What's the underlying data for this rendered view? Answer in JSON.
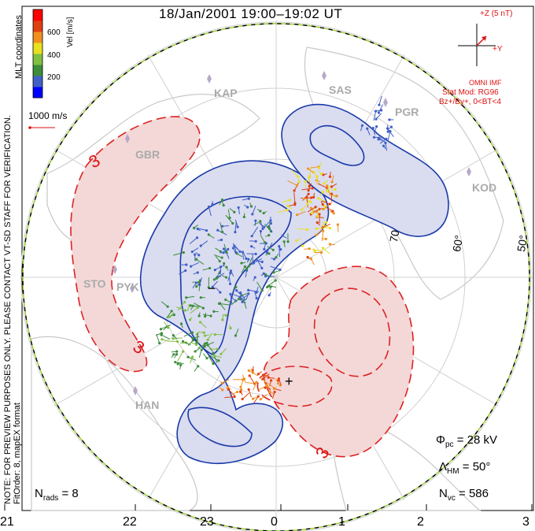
{
  "title": "18/Jan/2001 19:00–19:02 UT",
  "left_notes": {
    "coords": "MLT coordinates",
    "preview": "NOTE: FOR PREVIEW PURPOSES ONLY. PLEASE CONTACT VT-SD STAFF FOR VERIFICATION.",
    "fit": "FitOrder: 8, mapEX format"
  },
  "colorbar": {
    "label": "Vel [m/s]",
    "ticks": [
      "600",
      "400",
      "200"
    ],
    "colors": [
      "#0000ff",
      "#4060c8",
      "#3c8c3c",
      "#80c040",
      "#e8e020",
      "#f09020",
      "#e04010",
      "#ff0000"
    ]
  },
  "vector_scale": {
    "label": "1000 m/s"
  },
  "imf": {
    "z_label": "+Z (5 nT)",
    "y_label": "+Y",
    "source": "OMNI IMF",
    "model": "Stat Mod: RG96",
    "condition": "Bz+/By+, 0<BT<4"
  },
  "stations": [
    "KAP",
    "SAS",
    "PGR",
    "GBR",
    "KOD",
    "STO",
    "PYK",
    "HAN"
  ],
  "lat_labels": [
    "70",
    "60°",
    "50°"
  ],
  "contour_labels": {
    "minus3_top": "3",
    "minus3_left": "3",
    "minus3_bottom": "3",
    "neg_sign": "−",
    "pos_sign": "+"
  },
  "stats": {
    "phi": "Φ",
    "phi_sub": "pc",
    "phi_value": "= 28 kV",
    "lambda": "Λ",
    "lambda_sub": "HM",
    "lambda_value": "= 50°",
    "nvc": "N",
    "nvc_sub": "vc",
    "nvc_value": "= 586",
    "nrads": "N",
    "nrads_sub": "rads",
    "nrads_value": "= 8"
  },
  "mlt_axis": [
    "21",
    "22",
    "23",
    "0",
    "1",
    "2",
    "3"
  ],
  "potential": {
    "positive_region_color": "#f4d8d8",
    "negative_region_color": "#dadcf0",
    "positive_line": "#d22",
    "negative_line": "#1a3aa8"
  }
}
